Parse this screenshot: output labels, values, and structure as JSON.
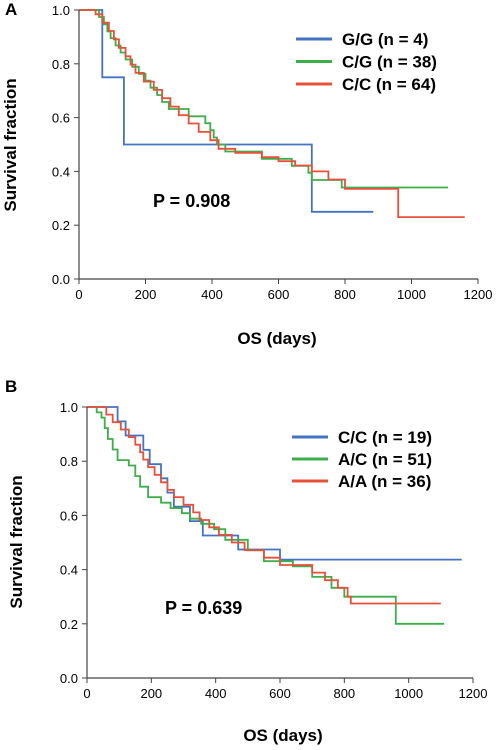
{
  "chart_data": [
    {
      "panel_label": "A",
      "type": "line",
      "subtype": "kaplan-meier-step",
      "xlabel": "OS (days)",
      "ylabel": "Survival fraction",
      "xlim": [
        0,
        1200
      ],
      "ylim": [
        0,
        1.0
      ],
      "xticks": [
        0,
        200,
        400,
        600,
        800,
        1000,
        1200
      ],
      "yticks": [
        0.0,
        0.2,
        0.4,
        0.6,
        0.8,
        1.0
      ],
      "xtick_labels": [
        "0",
        "200",
        "400",
        "600",
        "800",
        "1000",
        "1200"
      ],
      "ytick_labels": [
        "0.0",
        "0.2",
        "0.4",
        "0.6",
        "0.8",
        "1.0"
      ],
      "grid": false,
      "legend_position": "top-right",
      "annotation": "P = 0.908",
      "series": [
        {
          "name": "G/G (n = 4)",
          "color": "#4472C4",
          "points": [
            [
              0,
              1.0
            ],
            [
              70,
              1.0
            ],
            [
              70,
              0.75
            ],
            [
              135,
              0.75
            ],
            [
              135,
              0.5
            ],
            [
              700,
              0.5
            ],
            [
              700,
              0.25
            ],
            [
              885,
              0.25
            ]
          ]
        },
        {
          "name": "C/G (n = 38)",
          "color": "#3DAE49",
          "points": [
            [
              0,
              1.0
            ],
            [
              60,
              1.0
            ],
            [
              60,
              0.974
            ],
            [
              75,
              0.974
            ],
            [
              75,
              0.947
            ],
            [
              85,
              0.947
            ],
            [
              85,
              0.921
            ],
            [
              95,
              0.921
            ],
            [
              95,
              0.895
            ],
            [
              110,
              0.895
            ],
            [
              110,
              0.868
            ],
            [
              125,
              0.868
            ],
            [
              125,
              0.842
            ],
            [
              140,
              0.842
            ],
            [
              140,
              0.816
            ],
            [
              160,
              0.816
            ],
            [
              160,
              0.789
            ],
            [
              180,
              0.789
            ],
            [
              180,
              0.763
            ],
            [
              200,
              0.763
            ],
            [
              200,
              0.737
            ],
            [
              215,
              0.737
            ],
            [
              215,
              0.711
            ],
            [
              235,
              0.711
            ],
            [
              235,
              0.684
            ],
            [
              250,
              0.684
            ],
            [
              250,
              0.658
            ],
            [
              270,
              0.658
            ],
            [
              270,
              0.632
            ],
            [
              330,
              0.632
            ],
            [
              330,
              0.605
            ],
            [
              380,
              0.605
            ],
            [
              380,
              0.579
            ],
            [
              395,
              0.579
            ],
            [
              395,
              0.553
            ],
            [
              405,
              0.553
            ],
            [
              405,
              0.526
            ],
            [
              415,
              0.526
            ],
            [
              415,
              0.5
            ],
            [
              440,
              0.5
            ],
            [
              440,
              0.474
            ],
            [
              550,
              0.474
            ],
            [
              550,
              0.447
            ],
            [
              640,
              0.447
            ],
            [
              640,
              0.421
            ],
            [
              690,
              0.421
            ],
            [
              690,
              0.395
            ],
            [
              700,
              0.395
            ],
            [
              700,
              0.368
            ],
            [
              790,
              0.368
            ],
            [
              790,
              0.34
            ],
            [
              1110,
              0.34
            ]
          ]
        },
        {
          "name": "C/C (n = 64)",
          "color": "#E8503A",
          "points": [
            [
              0,
              1.0
            ],
            [
              50,
              1.0
            ],
            [
              50,
              0.984
            ],
            [
              70,
              0.984
            ],
            [
              70,
              0.953
            ],
            [
              90,
              0.953
            ],
            [
              90,
              0.922
            ],
            [
              105,
              0.922
            ],
            [
              105,
              0.891
            ],
            [
              120,
              0.891
            ],
            [
              120,
              0.859
            ],
            [
              140,
              0.859
            ],
            [
              140,
              0.828
            ],
            [
              155,
              0.828
            ],
            [
              155,
              0.797
            ],
            [
              170,
              0.797
            ],
            [
              170,
              0.766
            ],
            [
              195,
              0.766
            ],
            [
              195,
              0.734
            ],
            [
              225,
              0.734
            ],
            [
              225,
              0.703
            ],
            [
              250,
              0.703
            ],
            [
              250,
              0.672
            ],
            [
              275,
              0.672
            ],
            [
              275,
              0.641
            ],
            [
              300,
              0.641
            ],
            [
              300,
              0.609
            ],
            [
              330,
              0.609
            ],
            [
              330,
              0.578
            ],
            [
              360,
              0.578
            ],
            [
              360,
              0.547
            ],
            [
              395,
              0.547
            ],
            [
              395,
              0.516
            ],
            [
              420,
              0.516
            ],
            [
              420,
              0.484
            ],
            [
              470,
              0.484
            ],
            [
              470,
              0.469
            ],
            [
              550,
              0.469
            ],
            [
              550,
              0.453
            ],
            [
              600,
              0.453
            ],
            [
              600,
              0.438
            ],
            [
              650,
              0.438
            ],
            [
              650,
              0.422
            ],
            [
              700,
              0.422
            ],
            [
              700,
              0.4
            ],
            [
              750,
              0.4
            ],
            [
              750,
              0.37
            ],
            [
              800,
              0.37
            ],
            [
              800,
              0.335
            ],
            [
              960,
              0.335
            ],
            [
              960,
              0.23
            ],
            [
              1160,
              0.23
            ]
          ]
        }
      ]
    },
    {
      "panel_label": "B",
      "type": "line",
      "subtype": "kaplan-meier-step",
      "xlabel": "OS (days)",
      "ylabel": "Survival fraction",
      "xlim": [
        0,
        1200
      ],
      "ylim": [
        0,
        1.0
      ],
      "xticks": [
        0,
        200,
        400,
        600,
        800,
        1000,
        1200
      ],
      "yticks": [
        0.0,
        0.2,
        0.4,
        0.6,
        0.8,
        1.0
      ],
      "xtick_labels": [
        "0",
        "200",
        "400",
        "600",
        "800",
        "1000",
        "1200"
      ],
      "ytick_labels": [
        "0.0",
        "0.2",
        "0.4",
        "0.6",
        "0.8",
        "1.0"
      ],
      "grid": false,
      "legend_position": "top-right",
      "annotation": "P = 0.639",
      "series": [
        {
          "name": "C/C (n = 19)",
          "color": "#4472C4",
          "points": [
            [
              0,
              1.0
            ],
            [
              95,
              1.0
            ],
            [
              95,
              0.947
            ],
            [
              120,
              0.947
            ],
            [
              120,
              0.895
            ],
            [
              175,
              0.895
            ],
            [
              175,
              0.842
            ],
            [
              195,
              0.842
            ],
            [
              195,
              0.789
            ],
            [
              230,
              0.789
            ],
            [
              230,
              0.737
            ],
            [
              250,
              0.737
            ],
            [
              250,
              0.684
            ],
            [
              270,
              0.684
            ],
            [
              270,
              0.632
            ],
            [
              320,
              0.632
            ],
            [
              320,
              0.579
            ],
            [
              360,
              0.579
            ],
            [
              360,
              0.526
            ],
            [
              470,
              0.526
            ],
            [
              470,
              0.474
            ],
            [
              600,
              0.474
            ],
            [
              600,
              0.437
            ],
            [
              1165,
              0.437
            ]
          ]
        },
        {
          "name": "A/C (n = 51)",
          "color": "#3DAE49",
          "points": [
            [
              0,
              1.0
            ],
            [
              30,
              1.0
            ],
            [
              30,
              0.98
            ],
            [
              45,
              0.98
            ],
            [
              45,
              0.961
            ],
            [
              55,
              0.961
            ],
            [
              55,
              0.922
            ],
            [
              65,
              0.922
            ],
            [
              65,
              0.882
            ],
            [
              80,
              0.882
            ],
            [
              80,
              0.843
            ],
            [
              95,
              0.843
            ],
            [
              95,
              0.804
            ],
            [
              130,
              0.804
            ],
            [
              130,
              0.784
            ],
            [
              150,
              0.784
            ],
            [
              150,
              0.745
            ],
            [
              165,
              0.745
            ],
            [
              165,
              0.706
            ],
            [
              190,
              0.706
            ],
            [
              190,
              0.667
            ],
            [
              230,
              0.667
            ],
            [
              230,
              0.647
            ],
            [
              260,
              0.647
            ],
            [
              260,
              0.627
            ],
            [
              295,
              0.627
            ],
            [
              295,
              0.608
            ],
            [
              320,
              0.608
            ],
            [
              320,
              0.588
            ],
            [
              355,
              0.588
            ],
            [
              355,
              0.569
            ],
            [
              395,
              0.569
            ],
            [
              395,
              0.549
            ],
            [
              430,
              0.549
            ],
            [
              430,
              0.51
            ],
            [
              500,
              0.51
            ],
            [
              500,
              0.471
            ],
            [
              550,
              0.471
            ],
            [
              550,
              0.431
            ],
            [
              640,
              0.431
            ],
            [
              640,
              0.412
            ],
            [
              700,
              0.412
            ],
            [
              700,
              0.373
            ],
            [
              760,
              0.373
            ],
            [
              760,
              0.333
            ],
            [
              800,
              0.333
            ],
            [
              800,
              0.3
            ],
            [
              960,
              0.3
            ],
            [
              960,
              0.2
            ],
            [
              1110,
              0.2
            ]
          ]
        },
        {
          "name": "A/A (n = 36)",
          "color": "#E8503A",
          "points": [
            [
              0,
              1.0
            ],
            [
              60,
              1.0
            ],
            [
              60,
              0.972
            ],
            [
              80,
              0.972
            ],
            [
              80,
              0.944
            ],
            [
              105,
              0.944
            ],
            [
              105,
              0.917
            ],
            [
              130,
              0.917
            ],
            [
              130,
              0.889
            ],
            [
              150,
              0.889
            ],
            [
              150,
              0.861
            ],
            [
              165,
              0.861
            ],
            [
              165,
              0.833
            ],
            [
              175,
              0.833
            ],
            [
              175,
              0.806
            ],
            [
              190,
              0.806
            ],
            [
              190,
              0.778
            ],
            [
              210,
              0.778
            ],
            [
              210,
              0.75
            ],
            [
              230,
              0.75
            ],
            [
              230,
              0.722
            ],
            [
              250,
              0.722
            ],
            [
              250,
              0.694
            ],
            [
              270,
              0.694
            ],
            [
              270,
              0.667
            ],
            [
              300,
              0.667
            ],
            [
              300,
              0.639
            ],
            [
              330,
              0.639
            ],
            [
              330,
              0.611
            ],
            [
              350,
              0.611
            ],
            [
              350,
              0.583
            ],
            [
              380,
              0.583
            ],
            [
              380,
              0.556
            ],
            [
              410,
              0.556
            ],
            [
              410,
              0.528
            ],
            [
              450,
              0.528
            ],
            [
              450,
              0.5
            ],
            [
              490,
              0.5
            ],
            [
              490,
              0.472
            ],
            [
              550,
              0.472
            ],
            [
              550,
              0.444
            ],
            [
              600,
              0.444
            ],
            [
              600,
              0.417
            ],
            [
              700,
              0.417
            ],
            [
              700,
              0.389
            ],
            [
              740,
              0.389
            ],
            [
              740,
              0.361
            ],
            [
              780,
              0.361
            ],
            [
              780,
              0.333
            ],
            [
              810,
              0.333
            ],
            [
              810,
              0.3
            ],
            [
              820,
              0.3
            ],
            [
              820,
              0.275
            ],
            [
              1100,
              0.275
            ]
          ]
        }
      ]
    }
  ]
}
